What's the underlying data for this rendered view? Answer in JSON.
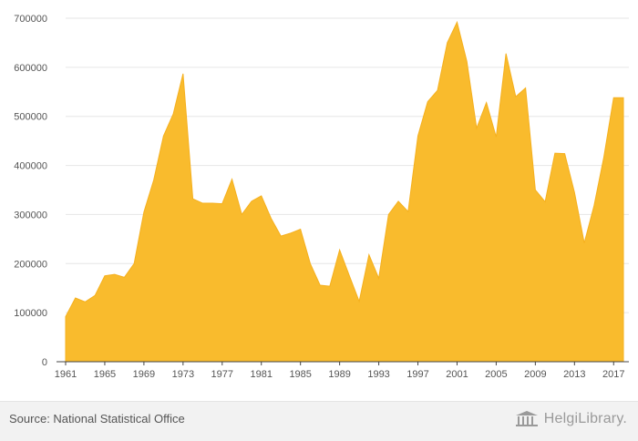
{
  "chart_data": {
    "type": "area",
    "x": [
      1961,
      1962,
      1963,
      1964,
      1965,
      1966,
      1967,
      1968,
      1969,
      1970,
      1971,
      1972,
      1973,
      1974,
      1975,
      1976,
      1977,
      1978,
      1979,
      1980,
      1981,
      1982,
      1983,
      1984,
      1985,
      1986,
      1987,
      1988,
      1989,
      1990,
      1991,
      1992,
      1993,
      1994,
      1995,
      1996,
      1997,
      1998,
      1999,
      2000,
      2001,
      2002,
      2003,
      2004,
      2005,
      2006,
      2007,
      2008,
      2009,
      2010,
      2011,
      2012,
      2013,
      2014,
      2015,
      2016,
      2017,
      2018
    ],
    "values": [
      92000,
      130000,
      122000,
      135000,
      175000,
      178000,
      172000,
      200000,
      305000,
      370000,
      460000,
      505000,
      587000,
      332000,
      323000,
      323000,
      322000,
      372000,
      300000,
      327000,
      338000,
      292000,
      256000,
      262000,
      270000,
      200000,
      156000,
      154000,
      228000,
      175000,
      123000,
      218000,
      170000,
      300000,
      327000,
      306000,
      460000,
      530000,
      553000,
      650000,
      692000,
      612000,
      476000,
      528000,
      458000,
      628000,
      540000,
      558000,
      350000,
      326000,
      425000,
      424000,
      345000,
      242000,
      318000,
      417000,
      538000,
      538000
    ],
    "xticks": [
      1961,
      1965,
      1969,
      1973,
      1977,
      1981,
      1985,
      1989,
      1993,
      1997,
      2001,
      2005,
      2009,
      2013,
      2017
    ],
    "yticks": [
      0,
      100000,
      200000,
      300000,
      400000,
      500000,
      600000,
      700000
    ],
    "ylim": [
      0,
      700000
    ],
    "xlim": [
      1961,
      2018
    ],
    "color": "#F9BB2D",
    "grid": true
  },
  "footer": {
    "source": "Source: National Statistical Office",
    "brand": "HelgiLibrary."
  }
}
